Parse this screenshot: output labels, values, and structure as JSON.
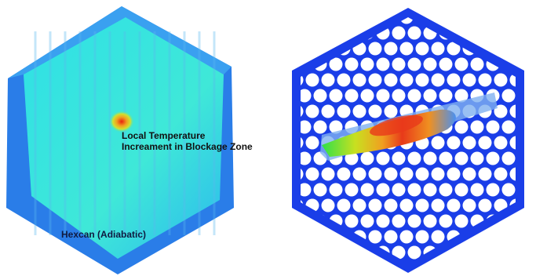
{
  "annotations": {
    "blockage": [
      "Local Temperature",
      "Increament in Blockage Zone"
    ],
    "hexcan": "Hexcan (Adiabatic)"
  }
}
